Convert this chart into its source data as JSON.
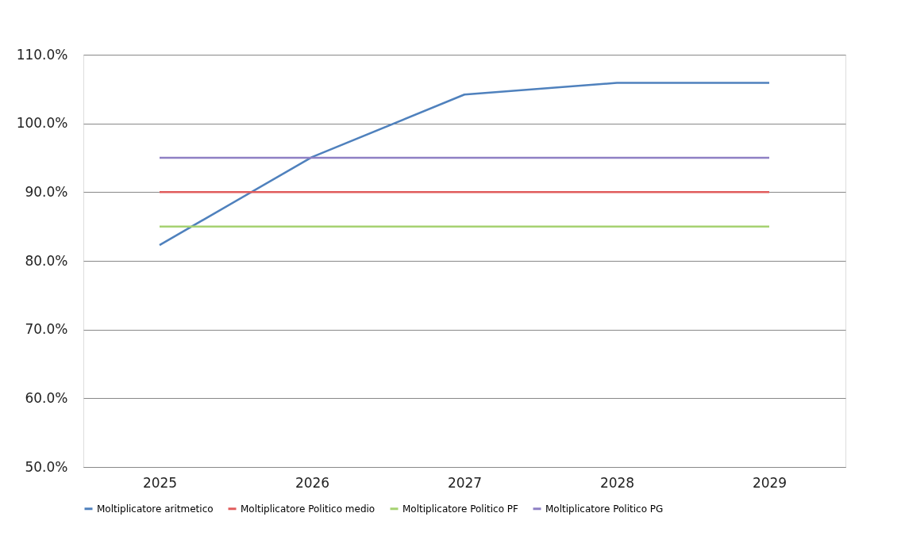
{
  "chart_data": {
    "type": "line",
    "categories": [
      "2025",
      "2026",
      "2027",
      "2028",
      "2029"
    ],
    "series": [
      {
        "name": "Moltiplicatore aritmetico",
        "color": "#4f81bd",
        "values": [
          82.3,
          95.1,
          104.2,
          105.9,
          105.9
        ]
      },
      {
        "name": "Moltiplicatore Politico medio",
        "color": "#e05c5c",
        "values": [
          90,
          90,
          90,
          90,
          90
        ]
      },
      {
        "name": "Moltiplicatore Politico PF",
        "color": "#a6d271",
        "values": [
          85,
          85,
          85,
          85,
          85
        ]
      },
      {
        "name": "Moltiplicatore Politico PG",
        "color": "#8e80c4",
        "values": [
          95,
          95,
          95,
          95,
          95
        ]
      }
    ],
    "ylim": [
      50,
      110
    ],
    "yticks": [
      {
        "value": 50,
        "label": "50.0%"
      },
      {
        "value": 60,
        "label": "60.0%"
      },
      {
        "value": 70,
        "label": "70.0%"
      },
      {
        "value": 80,
        "label": "80.0%"
      },
      {
        "value": 90,
        "label": "90.0%"
      },
      {
        "value": 100,
        "label": "100.0%"
      },
      {
        "value": 110,
        "label": "110.0%"
      }
    ],
    "grid": "y",
    "legend": "bottom",
    "marker": "none",
    "line_style": "solid"
  }
}
